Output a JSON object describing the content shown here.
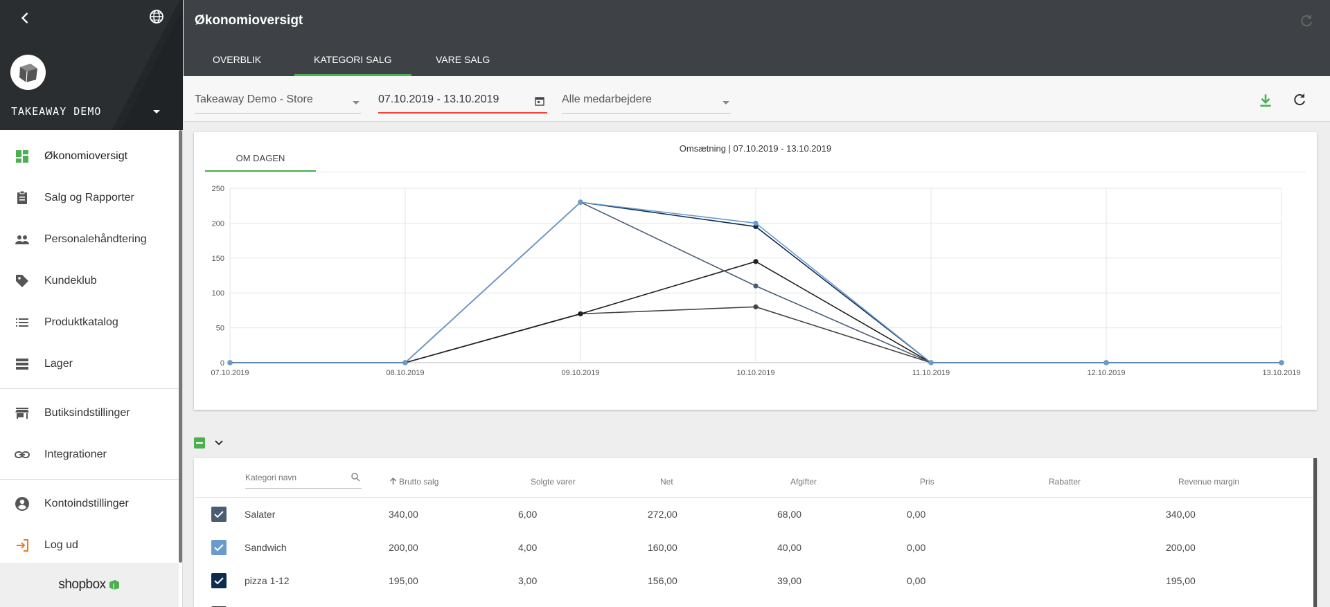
{
  "sidebar": {
    "store_name": "TAKEAWAY DEMO",
    "items": [
      {
        "label": "Økonomioversigt",
        "icon": "dashboard-icon",
        "active": true
      },
      {
        "label": "Salg og Rapporter",
        "icon": "clipboard-icon"
      },
      {
        "label": "Personalehåndtering",
        "icon": "people-icon"
      },
      {
        "label": "Kundeklub",
        "icon": "tag-icon"
      },
      {
        "label": "Produktkatalog",
        "icon": "list-icon"
      },
      {
        "label": "Lager",
        "icon": "storage-icon"
      },
      {
        "label": "Butiksindstillinger",
        "icon": "store-icon"
      },
      {
        "label": "Integrationer",
        "icon": "link-icon"
      },
      {
        "label": "Kontoindstillinger",
        "icon": "account-icon"
      },
      {
        "label": "Log ud",
        "icon": "logout-icon"
      }
    ],
    "footer_brand": "shopbox"
  },
  "header": {
    "title": "Økonomioversigt",
    "tabs": [
      {
        "label": "OVERBLIK"
      },
      {
        "label": "KATEGORI SALG",
        "active": true
      },
      {
        "label": "VARE SALG"
      }
    ]
  },
  "filters": {
    "store": "Takeaway Demo - Store",
    "date_range": "07.10.2019 - 13.10.2019",
    "employees": "Alle medarbejdere"
  },
  "chart_card": {
    "tab_label": "OM DAGEN"
  },
  "chart_data": {
    "type": "line",
    "title": "Omsætning | 07.10.2019 - 13.10.2019",
    "categories": [
      "07.10.2019",
      "08.10.2019",
      "09.10.2019",
      "10.10.2019",
      "11.10.2019",
      "12.10.2019",
      "13.10.2019"
    ],
    "ylim": [
      0,
      250
    ],
    "yticks": [
      0,
      50,
      100,
      150,
      200,
      250
    ],
    "grid": true,
    "series": [
      {
        "color": "#6a9bcf",
        "values": [
          0,
          0,
          230,
          200,
          0,
          0,
          0
        ]
      },
      {
        "color": "#0d2c50",
        "values": [
          0,
          0,
          230,
          195,
          0,
          0,
          0
        ]
      },
      {
        "color": "#4b5c73",
        "values": [
          0,
          0,
          230,
          110,
          0,
          0,
          0
        ]
      },
      {
        "color": "#1f1f1f",
        "values": [
          0,
          0,
          70,
          145,
          0,
          0,
          0
        ]
      },
      {
        "color": "#444444",
        "values": [
          0,
          0,
          70,
          80,
          0,
          0,
          0
        ]
      }
    ]
  },
  "table": {
    "search_placeholder": "Kategori navn",
    "headers": {
      "brutto": "Brutto salg",
      "solgte": "Solgte varer",
      "net": "Net",
      "afgifter": "Afgifter",
      "pris": "Pris",
      "rabatter": "Rabatter",
      "margin": "Revenue margin"
    },
    "rows": [
      {
        "name": "Salater",
        "brutto": "340,00",
        "solgte": "6,00",
        "net": "272,00",
        "afgifter": "68,00",
        "pris": "0,00",
        "rabatter": "",
        "margin": "340,00",
        "color": "#4b5c73"
      },
      {
        "name": "Sandwich",
        "brutto": "200,00",
        "solgte": "4,00",
        "net": "160,00",
        "afgifter": "40,00",
        "pris": "0,00",
        "rabatter": "",
        "margin": "200,00",
        "color": "#6a9bcf"
      },
      {
        "name": "pizza 1-12",
        "brutto": "195,00",
        "solgte": "3,00",
        "net": "156,00",
        "afgifter": "39,00",
        "pris": "0,00",
        "rabatter": "",
        "margin": "195,00",
        "color": "#0d2c50"
      }
    ]
  }
}
